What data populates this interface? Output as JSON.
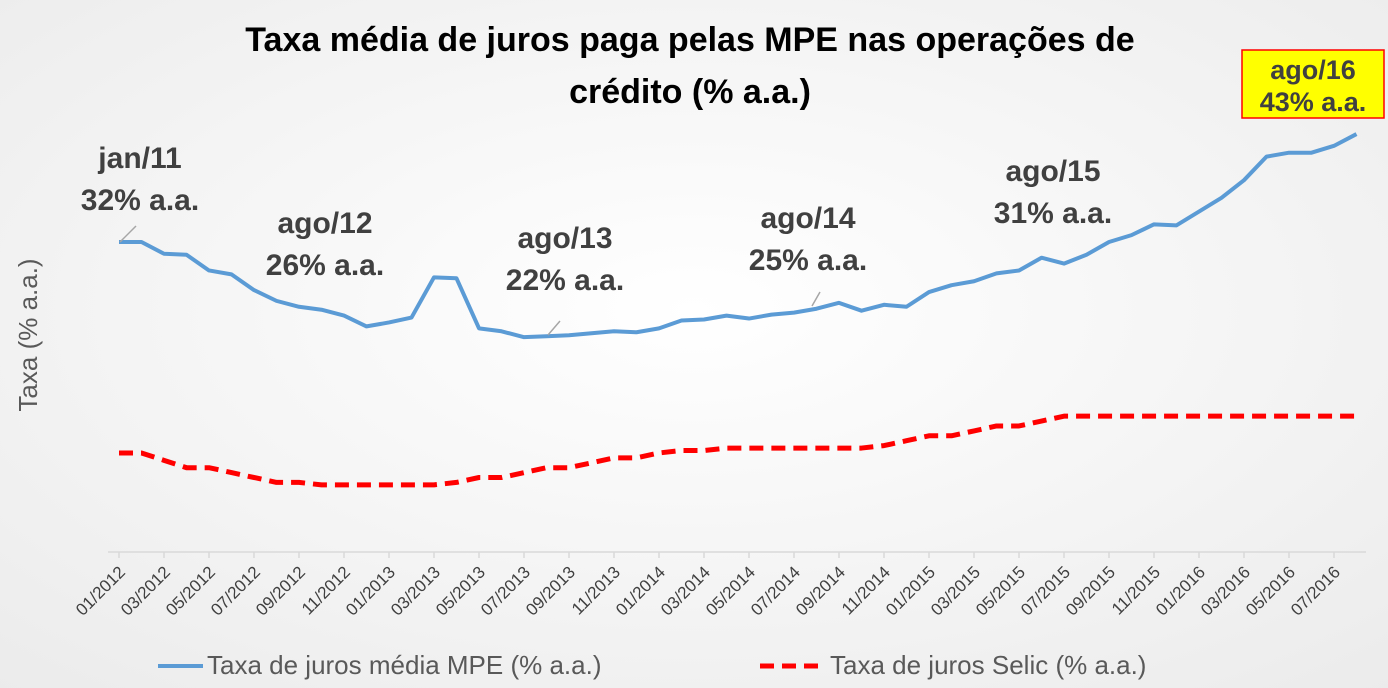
{
  "chart_data": {
    "type": "line",
    "title": [
      "Taxa média de juros paga pelas MPE nas operações de",
      "crédito (% a.a.)"
    ],
    "ylabel": "Taxa (% a.a.)",
    "categories": [
      "01/2012",
      null,
      "03/2012",
      null,
      "05/2012",
      null,
      "07/2012",
      null,
      "09/2012",
      null,
      "11/2012",
      null,
      "01/2013",
      null,
      "03/2013",
      null,
      "05/2013",
      null,
      "07/2013",
      null,
      "09/2013",
      null,
      "11/2013",
      null,
      "01/2014",
      null,
      "03/2014",
      null,
      "05/2014",
      null,
      "07/2014",
      null,
      "09/2014",
      null,
      "11/2014",
      null,
      "01/2015",
      null,
      "03/2015",
      null,
      "05/2015",
      null,
      "07/2015",
      null,
      "09/2015",
      null,
      "11/2015",
      null,
      "01/2016",
      null,
      "03/2016",
      null,
      "05/2016",
      null,
      "07/2016",
      null
    ],
    "ylim": [
      0,
      48
    ],
    "series": [
      {
        "name": "Taxa de juros média MPE (% a.a.)",
        "color": "#5b9bd5",
        "dash": false,
        "values": [
          32.0,
          32.0,
          30.8,
          30.7,
          29.1,
          28.7,
          27.1,
          26.0,
          25.4,
          25.1,
          24.5,
          23.4,
          23.8,
          24.3,
          28.4,
          28.3,
          23.2,
          22.9,
          22.3,
          22.4,
          22.5,
          22.7,
          22.9,
          22.8,
          23.2,
          24.0,
          24.1,
          24.5,
          24.2,
          24.6,
          24.8,
          25.2,
          25.8,
          25.0,
          25.6,
          25.4,
          26.9,
          27.6,
          28.0,
          28.8,
          29.1,
          30.4,
          29.8,
          30.7,
          32.0,
          32.7,
          33.8,
          33.7,
          35.1,
          36.5,
          38.3,
          40.7,
          41.1,
          41.1,
          41.8,
          43.0
        ]
      },
      {
        "name": "Taxa de juros Selic (% a.a.)",
        "color": "#ff0000",
        "dash": true,
        "values": [
          10.5,
          10.5,
          9.75,
          9.0,
          9.0,
          8.5,
          8.0,
          7.5,
          7.5,
          7.25,
          7.25,
          7.25,
          7.25,
          7.25,
          7.25,
          7.5,
          8.0,
          8.0,
          8.5,
          9.0,
          9.0,
          9.5,
          10.0,
          10.0,
          10.5,
          10.75,
          10.75,
          11.0,
          11.0,
          11.0,
          11.0,
          11.0,
          11.0,
          11.0,
          11.25,
          11.75,
          12.25,
          12.25,
          12.75,
          13.25,
          13.25,
          13.75,
          14.25,
          14.25,
          14.25,
          14.25,
          14.25,
          14.25,
          14.25,
          14.25,
          14.25,
          14.25,
          14.25,
          14.25,
          14.25,
          14.25
        ]
      }
    ],
    "annotations": [
      {
        "lines": [
          "jan/11",
          "32% a.a."
        ]
      },
      {
        "lines": [
          "ago/12",
          "26% a.a."
        ]
      },
      {
        "lines": [
          "ago/13",
          "22% a.a."
        ]
      },
      {
        "lines": [
          "ago/14",
          "25% a.a."
        ]
      },
      {
        "lines": [
          "ago/15",
          "31% a.a."
        ]
      },
      {
        "lines": [
          "ago/16",
          "43% a.a."
        ],
        "boxed": true
      }
    ]
  }
}
